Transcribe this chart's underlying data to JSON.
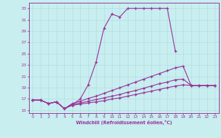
{
  "xlabel": "Windchill (Refroidissement éolien,°C)",
  "background_color": "#c8eef0",
  "grid_color": "#b0dde0",
  "line_color": "#993399",
  "xlim": [
    -0.5,
    23.5
  ],
  "ylim": [
    14.5,
    34
  ],
  "xticks": [
    0,
    1,
    2,
    3,
    4,
    5,
    6,
    7,
    8,
    9,
    10,
    11,
    12,
    13,
    14,
    15,
    16,
    17,
    18,
    19,
    20,
    21,
    22,
    23
  ],
  "yticks": [
    15,
    17,
    19,
    21,
    23,
    25,
    27,
    29,
    31,
    33
  ],
  "series": [
    {
      "x": [
        0,
        1,
        2,
        3,
        4,
        5,
        6,
        7,
        8,
        9,
        10,
        11,
        12,
        13,
        14,
        15,
        16,
        17,
        18,
        19,
        20,
        21,
        22,
        23
      ],
      "y": [
        16.8,
        16.8,
        16.2,
        16.5,
        15.3,
        16.0,
        17.0,
        19.5,
        23.5,
        29.5,
        32.0,
        31.5,
        33.0,
        33.0,
        33.0,
        33.0,
        33.0,
        33.0,
        25.5,
        null,
        null,
        null,
        null,
        null
      ],
      "has_null": true,
      "x_valid": [
        0,
        1,
        2,
        3,
        4,
        5,
        6,
        7,
        8,
        9,
        10,
        11,
        12,
        13,
        14,
        15,
        16,
        17,
        18
      ],
      "y_valid": [
        16.8,
        16.8,
        16.2,
        16.5,
        15.3,
        16.0,
        17.0,
        19.5,
        23.5,
        29.5,
        32.0,
        31.5,
        33.0,
        33.0,
        33.0,
        33.0,
        33.0,
        33.0,
        25.5
      ]
    },
    {
      "x": [
        0,
        1,
        2,
        3,
        4,
        5,
        6,
        7,
        8,
        9,
        10,
        11,
        12,
        13,
        14,
        15,
        16,
        17,
        18,
        19,
        20,
        21,
        22,
        23
      ],
      "y": [
        16.8,
        16.8,
        16.2,
        16.5,
        15.3,
        16.2,
        16.6,
        17.1,
        17.5,
        18.0,
        18.5,
        19.0,
        19.5,
        20.0,
        20.5,
        21.0,
        21.5,
        22.0,
        22.5,
        22.8,
        19.4,
        19.4,
        19.4,
        19.4
      ]
    },
    {
      "x": [
        0,
        1,
        2,
        3,
        4,
        5,
        6,
        7,
        8,
        9,
        10,
        11,
        12,
        13,
        14,
        15,
        16,
        17,
        18,
        19,
        20,
        21,
        22,
        23
      ],
      "y": [
        16.8,
        16.8,
        16.2,
        16.5,
        15.3,
        16.0,
        16.3,
        16.6,
        16.9,
        17.2,
        17.5,
        17.8,
        18.2,
        18.5,
        18.9,
        19.3,
        19.7,
        20.0,
        20.4,
        20.5,
        19.4,
        19.4,
        19.4,
        19.4
      ]
    },
    {
      "x": [
        0,
        1,
        2,
        3,
        4,
        5,
        6,
        7,
        8,
        9,
        10,
        11,
        12,
        13,
        14,
        15,
        16,
        17,
        18,
        19,
        20,
        21,
        22,
        23
      ],
      "y": [
        16.8,
        16.8,
        16.2,
        16.5,
        15.3,
        15.9,
        16.1,
        16.3,
        16.5,
        16.7,
        17.0,
        17.2,
        17.5,
        17.8,
        18.1,
        18.4,
        18.7,
        19.0,
        19.3,
        19.5,
        19.4,
        19.4,
        19.4,
        19.4
      ]
    }
  ]
}
